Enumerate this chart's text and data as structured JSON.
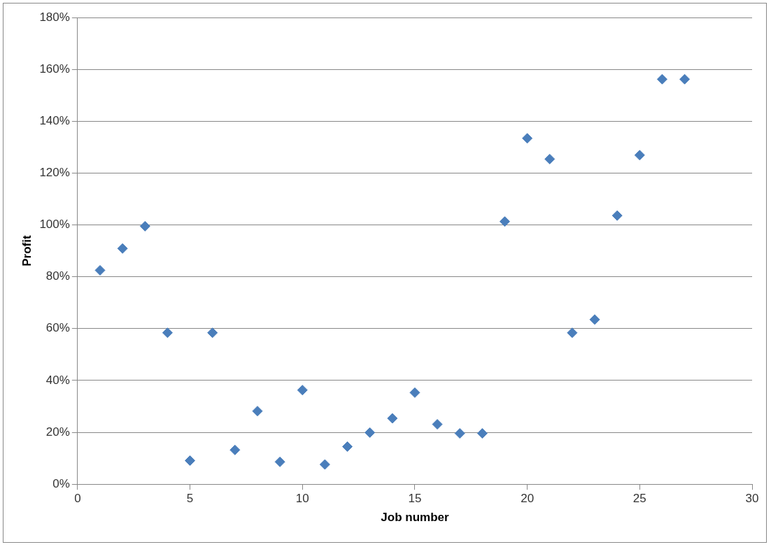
{
  "chart_data": {
    "type": "scatter",
    "xlabel": "Job number",
    "ylabel": "Profit",
    "x": [
      1,
      2,
      3,
      4,
      5,
      6,
      7,
      8,
      9,
      10,
      11,
      12,
      13,
      14,
      15,
      16,
      17,
      18,
      19,
      20,
      21,
      22,
      23,
      24,
      25,
      26,
      27
    ],
    "series": [
      {
        "color": "#4a7ebb",
        "values": [
          82.5,
          90.9,
          99.5,
          58.4,
          9.1,
          58.4,
          13.2,
          28.2,
          8.6,
          36.3,
          7.6,
          14.5,
          19.9,
          25.4,
          35.3,
          23.1,
          19.6,
          19.6,
          101.3,
          133.4,
          125.4,
          58.4,
          63.5,
          103.6,
          126.9,
          156.2,
          156.2
        ]
      }
    ],
    "xlim": [
      0,
      30
    ],
    "xticks": [
      0,
      5,
      10,
      15,
      20,
      25,
      30
    ],
    "ylim": [
      0,
      180
    ],
    "yticks": [
      {
        "value": 0,
        "label": "0%"
      },
      {
        "value": 20,
        "label": "20%"
      },
      {
        "value": 40,
        "label": "40%"
      },
      {
        "value": 60,
        "label": "60%"
      },
      {
        "value": 80,
        "label": "80%"
      },
      {
        "value": 100,
        "label": "100%"
      },
      {
        "value": 120,
        "label": "120%"
      },
      {
        "value": 140,
        "label": "140%"
      },
      {
        "value": 160,
        "label": "160%"
      },
      {
        "value": 180,
        "label": "180%"
      }
    ],
    "grid": "y",
    "legend": false,
    "marker": "diamond"
  }
}
